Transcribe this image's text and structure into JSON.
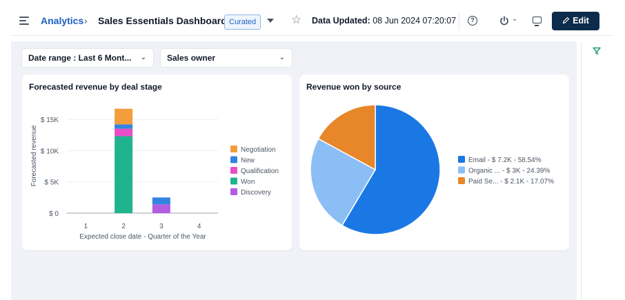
{
  "header": {
    "breadcrumb_link": "Analytics",
    "breadcrumb_sep": "›",
    "title": "Sales Essentials Dashboard",
    "badge": "Curated",
    "data_updated_label": "Data Updated:",
    "data_updated_value": "08 Jun 2024 07:20:07",
    "edit_label": "Edit",
    "icons": [
      "menu-icon",
      "chevron-down-icon",
      "star-icon",
      "help-icon",
      "power-icon",
      "monitor-icon",
      "pencil-icon",
      "filter-icon"
    ]
  },
  "filters": {
    "date_range": "Date range : Last 6 Mont...",
    "sales_owner": "Sales owner"
  },
  "colors": {
    "accent": "#1d5fbf",
    "edit_button": "#0d2b4a",
    "negotiation": "#f29e3d",
    "new": "#3384e0",
    "qualification": "#e94ec7",
    "won": "#20b48e",
    "discovery": "#b35de3",
    "email": "#1a78e5",
    "organic": "#8cbef6",
    "paid": "#e8862a"
  },
  "chart_data": [
    {
      "type": "bar",
      "stacked": true,
      "title": "Forecasted revenue by deal stage",
      "xlabel": "Expected close date - Quarter of the Year",
      "ylabel": "Forecasted revenue",
      "categories": [
        "1",
        "2",
        "3",
        "4"
      ],
      "yticks": [
        "$ 0",
        "$ 5K",
        "$ 10K",
        "$ 15K"
      ],
      "ylim": [
        0,
        16000
      ],
      "grid": true,
      "legend_position": "right",
      "series": [
        {
          "name": "Won",
          "values": [
            0,
            12300,
            0,
            0
          ]
        },
        {
          "name": "Qualification",
          "values": [
            0,
            1200,
            0,
            0
          ]
        },
        {
          "name": "New",
          "values": [
            0,
            700,
            0,
            0
          ]
        },
        {
          "name": "Negotiation",
          "values": [
            0,
            2500,
            0,
            0
          ]
        },
        {
          "name": "Discovery",
          "values": [
            0,
            0,
            1400,
            0
          ]
        },
        {
          "name": "New",
          "values": [
            0,
            0,
            1100,
            0
          ]
        }
      ],
      "legend": [
        "Negotiation",
        "New",
        "Qualification",
        "Won",
        "Discovery"
      ]
    },
    {
      "type": "pie",
      "title": "Revenue won by source",
      "legend_position": "right",
      "slices": [
        {
          "label": "Email",
          "value_label": "$ 7.2K",
          "percent": 58.54,
          "legend_text": "Email  - $ 7.2K - 58.54%"
        },
        {
          "label": "Organic ...",
          "value_label": "$ 3K",
          "percent": 24.39,
          "legend_text": "Organic ...  - $ 3K - 24.39%"
        },
        {
          "label": "Paid Se...",
          "value_label": "$ 2.1K",
          "percent": 17.07,
          "legend_text": "Paid Se...  - $ 2.1K - 17.07%"
        }
      ]
    }
  ]
}
